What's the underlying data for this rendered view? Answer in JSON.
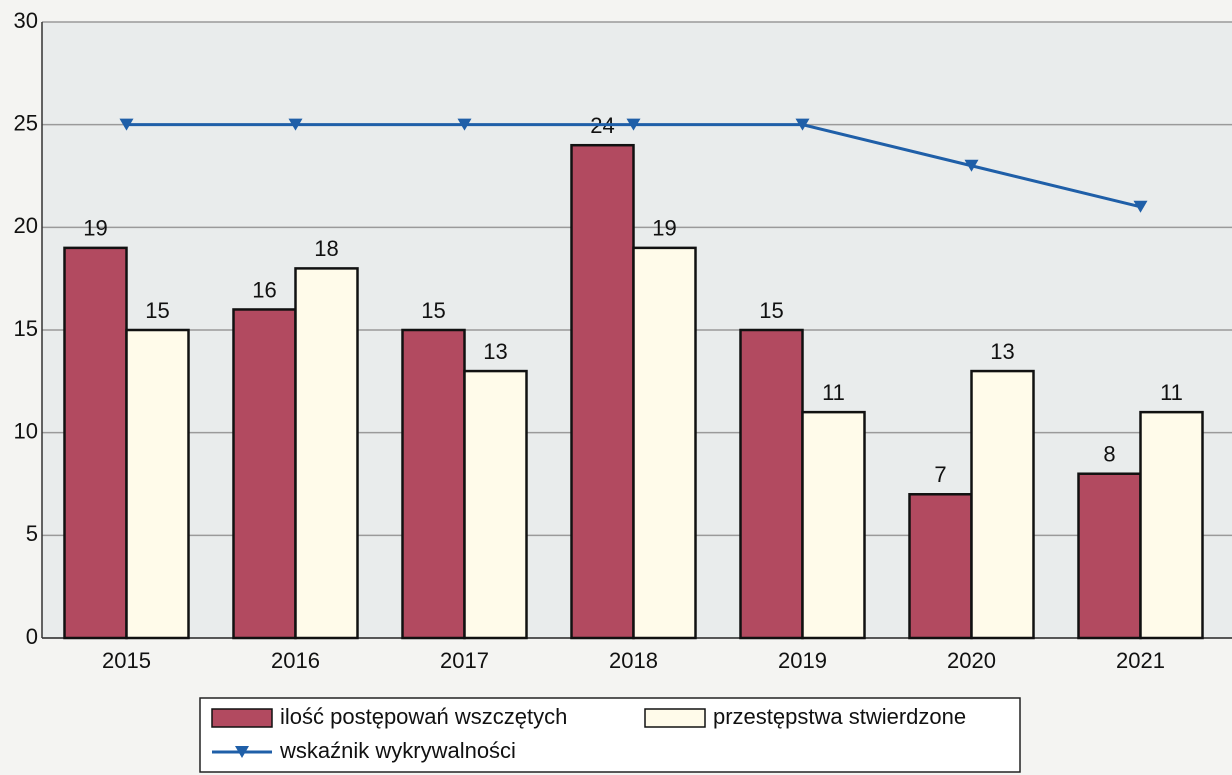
{
  "chart_data": {
    "type": "bar",
    "categories": [
      "2015",
      "2016",
      "2017",
      "2018",
      "2019",
      "2020",
      "2021"
    ],
    "series": [
      {
        "name": "ilość postępowań wszczętych",
        "color": "#b24a60",
        "values": [
          19,
          16,
          15,
          24,
          15,
          7,
          8
        ]
      },
      {
        "name": "przestępstwa stwierdzone",
        "color": "#fffbea",
        "values": [
          15,
          18,
          13,
          19,
          11,
          13,
          11
        ]
      },
      {
        "name": "wskaźnik wykrywalności",
        "color": "#1f5fa8",
        "type": "line",
        "values": [
          25,
          25,
          25,
          25,
          25,
          23,
          21
        ]
      }
    ],
    "ylim": [
      0,
      30
    ],
    "yticks": [
      0,
      5,
      10,
      15,
      20,
      25,
      30
    ],
    "grid": true,
    "legend": "bottom"
  }
}
